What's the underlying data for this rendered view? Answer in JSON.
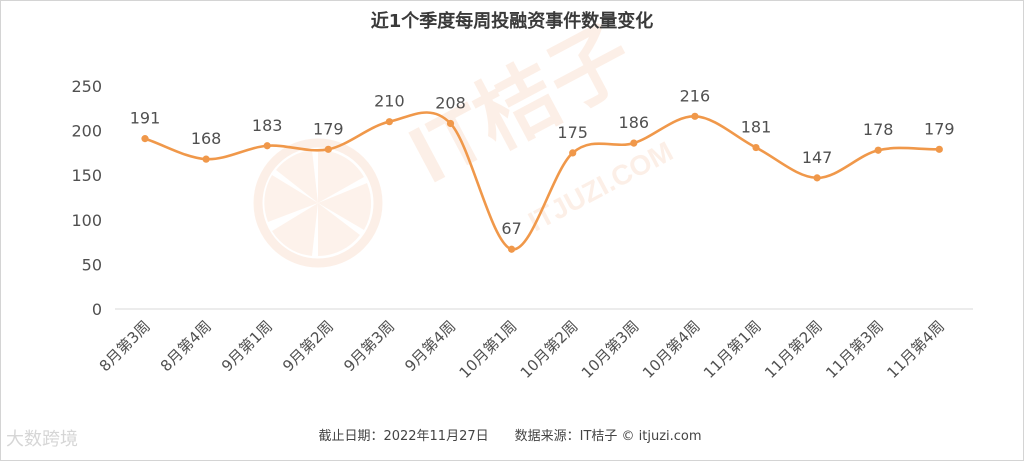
{
  "chart_data": {
    "type": "line",
    "title": "近1个季度每周投融资事件数量变化",
    "categories": [
      "8月第3周",
      "8月第4周",
      "9月第1周",
      "9月第2周",
      "9月第3周",
      "9月第4周",
      "10月第1周",
      "10月第2周",
      "10月第3周",
      "10月第4周",
      "11月第1周",
      "11月第2周",
      "11月第3周",
      "11月第4周"
    ],
    "series": [
      {
        "values": [
          191,
          168,
          183,
          179,
          210,
          208,
          67,
          175,
          186,
          216,
          181,
          147,
          178,
          179
        ]
      }
    ],
    "ylim": [
      0,
      250
    ],
    "yticks": [
      0,
      50,
      100,
      150,
      200,
      250
    ],
    "grid": false,
    "data_labels": true,
    "line_color": "#f0984a",
    "footer": "截止日期：2022年11月27日　　数据来源：IT桔子 © itjuzi.com"
  },
  "watermark": {
    "main_text": "IT桔子",
    "sub_text": "ITJUZI.COM",
    "corner_text": "大数跨境",
    "color": "#fbe3d4"
  }
}
